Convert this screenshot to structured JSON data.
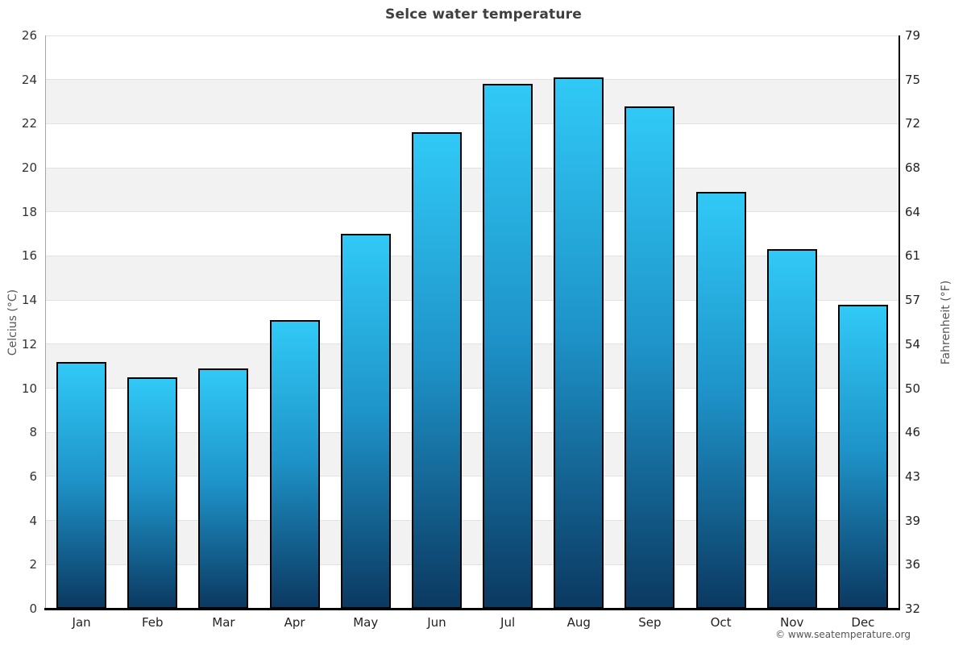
{
  "title": "Selce water temperature",
  "footer": {
    "credit": "© www.seatemperature.org"
  },
  "chart_data": {
    "type": "bar",
    "title": "Selce water temperature",
    "categories": [
      "Jan",
      "Feb",
      "Mar",
      "Apr",
      "May",
      "Jun",
      "Jul",
      "Aug",
      "Sep",
      "Oct",
      "Nov",
      "Dec"
    ],
    "values": [
      11.2,
      10.5,
      10.9,
      13.1,
      17.0,
      21.6,
      23.8,
      24.1,
      22.8,
      18.9,
      16.3,
      13.8
    ],
    "ylabel_left": "Celcius (°C)",
    "ylabel_right": "Fahrenheit (°F)",
    "ylim": [
      0,
      26
    ],
    "ytick_step": 2,
    "celsius_ticks": [
      0,
      2,
      4,
      6,
      8,
      10,
      12,
      14,
      16,
      18,
      20,
      22,
      24,
      26
    ],
    "fahrenheit_ticks": [
      32,
      36,
      39,
      43,
      46,
      50,
      54,
      57,
      61,
      64,
      68,
      72,
      75,
      79
    ],
    "grid": true,
    "legend": "none",
    "colors": {
      "bar_gradient_top": "#31c9f6",
      "bar_gradient_mid": "#1e93c9",
      "bar_gradient_bottom": "#0b3961",
      "bar_border": "#000000",
      "band": "#f2f2f2",
      "gridline": "#e2e2e2",
      "axis_left": "#a6a6a6",
      "axis_right": "#000000",
      "axis_bottom": "#000000",
      "title_color": "#3f3f3f"
    }
  }
}
